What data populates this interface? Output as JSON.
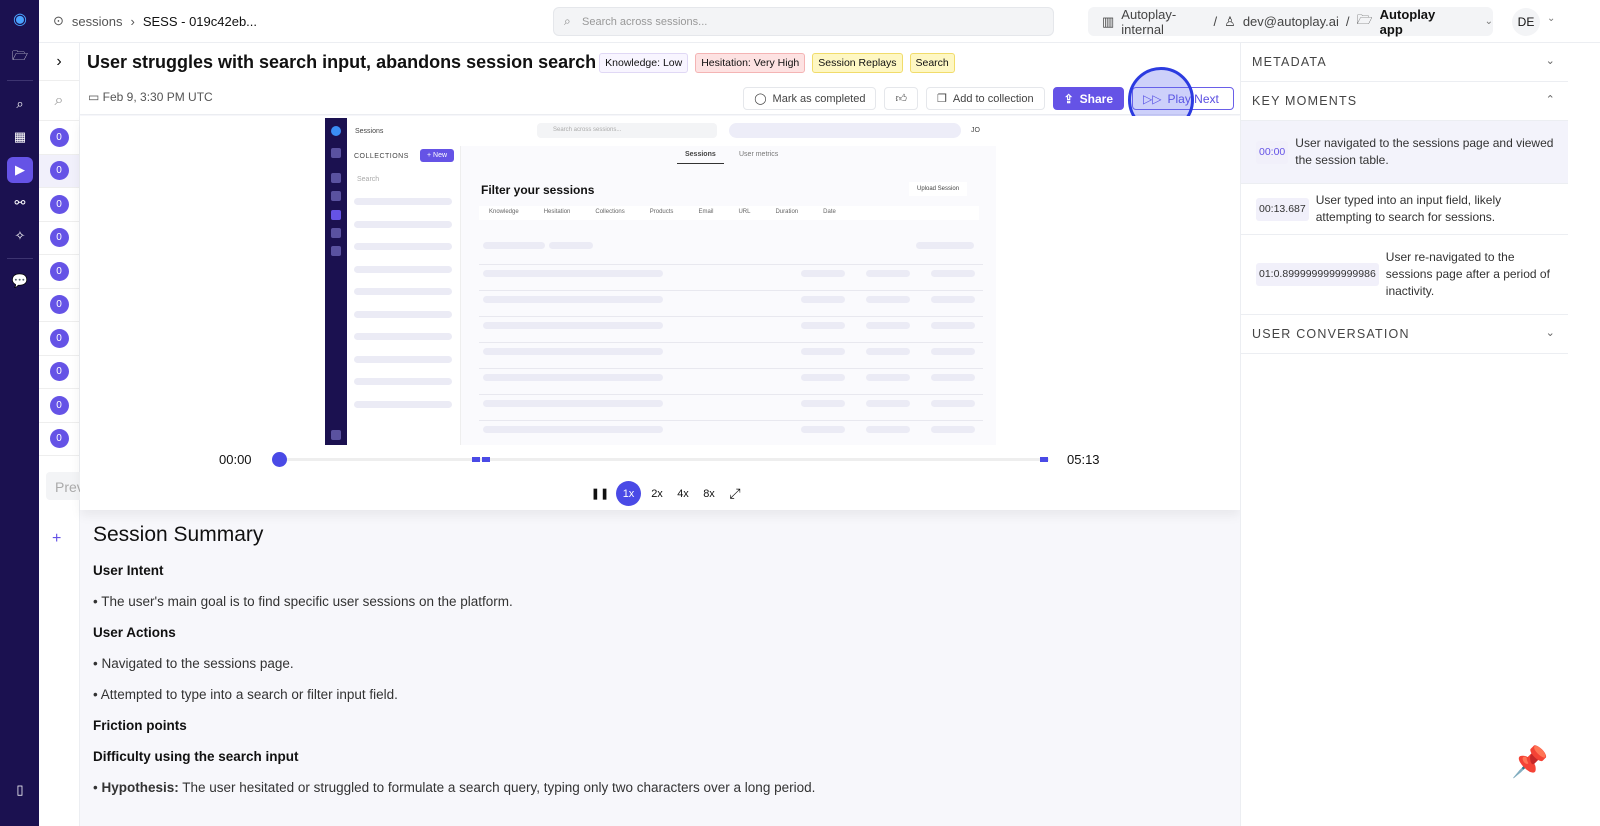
{
  "nav": {
    "items": [
      {
        "icon": "logo-icon"
      },
      {
        "icon": "folder-icon"
      },
      {
        "icon": "search-icon"
      },
      {
        "icon": "dashboard-icon"
      },
      {
        "icon": "play-icon",
        "active": true
      },
      {
        "icon": "flows-icon"
      },
      {
        "icon": "sparkle-icon"
      },
      {
        "icon": "chat-icon"
      },
      {
        "icon": "sidebar-toggle-icon"
      }
    ]
  },
  "breadcrumb": {
    "root": "sessions",
    "current": "SESS - 019c42eb..."
  },
  "search": {
    "placeholder": "Search across sessions..."
  },
  "org": {
    "workspace": "Autoplay-internal",
    "user": "dev@autoplay.ai",
    "app": "Autoplay app"
  },
  "avatar": "DE",
  "session_list": {
    "counts": [
      "0",
      "0",
      "0",
      "0",
      "0",
      "0",
      "0",
      "0",
      "0",
      "0"
    ],
    "prev_label": "Previous",
    "add": "+"
  },
  "session": {
    "title": "User struggles with search input, abandons session search",
    "date": "Feb 9, 3:30 PM UTC",
    "tags": [
      {
        "label": "Knowledge: Low",
        "bg": "#f8f5ff",
        "border": "#e0d8f5"
      },
      {
        "label": "Hesitation: Very High",
        "bg": "#fde2e2",
        "border": "#f4b4b4"
      },
      {
        "label": "Session Replays",
        "bg": "#fef7c3",
        "border": "#f1dc6b"
      },
      {
        "label": "Search",
        "bg": "#fef7c3",
        "border": "#f1dc6b"
      }
    ]
  },
  "actions": {
    "mark_completed": "Mark as completed",
    "add_collection": "Add to collection",
    "share": "Share",
    "play_next": "Play Next"
  },
  "replay": {
    "title": "Sessions",
    "search": "Search across sessions...",
    "avatar": "JO",
    "collections": "COLLECTIONS",
    "new": "+ New",
    "coll_search": "Search",
    "tab_sessions": "Sessions",
    "tab_metrics": "User metrics",
    "heading": "Filter your sessions",
    "upload": "Upload Session",
    "filters": [
      "Knowledge",
      "Hesitation",
      "Collections",
      "Products",
      "Email",
      "URL",
      "Duration",
      "Date"
    ]
  },
  "player": {
    "current": "00:00",
    "total": "05:13",
    "progress": 0,
    "speeds": [
      "1x",
      "2x",
      "4x",
      "8x"
    ],
    "selected_speed": "1x"
  },
  "summary": {
    "title": "Session Summary",
    "intent_h": "User Intent",
    "intent": "The user's main goal is to find specific user sessions on the platform.",
    "actions_h": "User Actions",
    "actions": [
      "Navigated to the sessions page.",
      "Attempted to type into a search or filter input field."
    ],
    "friction_h": "Friction points",
    "friction_sub": "Difficulty using the search input",
    "hyp_label": "Hypothesis:",
    "hyp": "The user hesitated or struggled to formulate a search query, typing only two characters over a long period."
  },
  "panel": {
    "metadata": "METADATA",
    "key_moments": "KEY MOMENTS",
    "conversation": "USER CONVERSATION",
    "moments": [
      {
        "time": "00:00",
        "text": "User navigated to the sessions page and viewed the session table."
      },
      {
        "time": "00:13.687",
        "text": "User typed into an input field, likely attempting to search for sessions."
      },
      {
        "time": "01:0.8999999999999986",
        "text": "User re-navigated to the sessions page after a period of inactivity."
      }
    ]
  },
  "colors": {
    "accent": "#6553e6",
    "rail": "#1b1150",
    "player": "#4a4ae6"
  }
}
